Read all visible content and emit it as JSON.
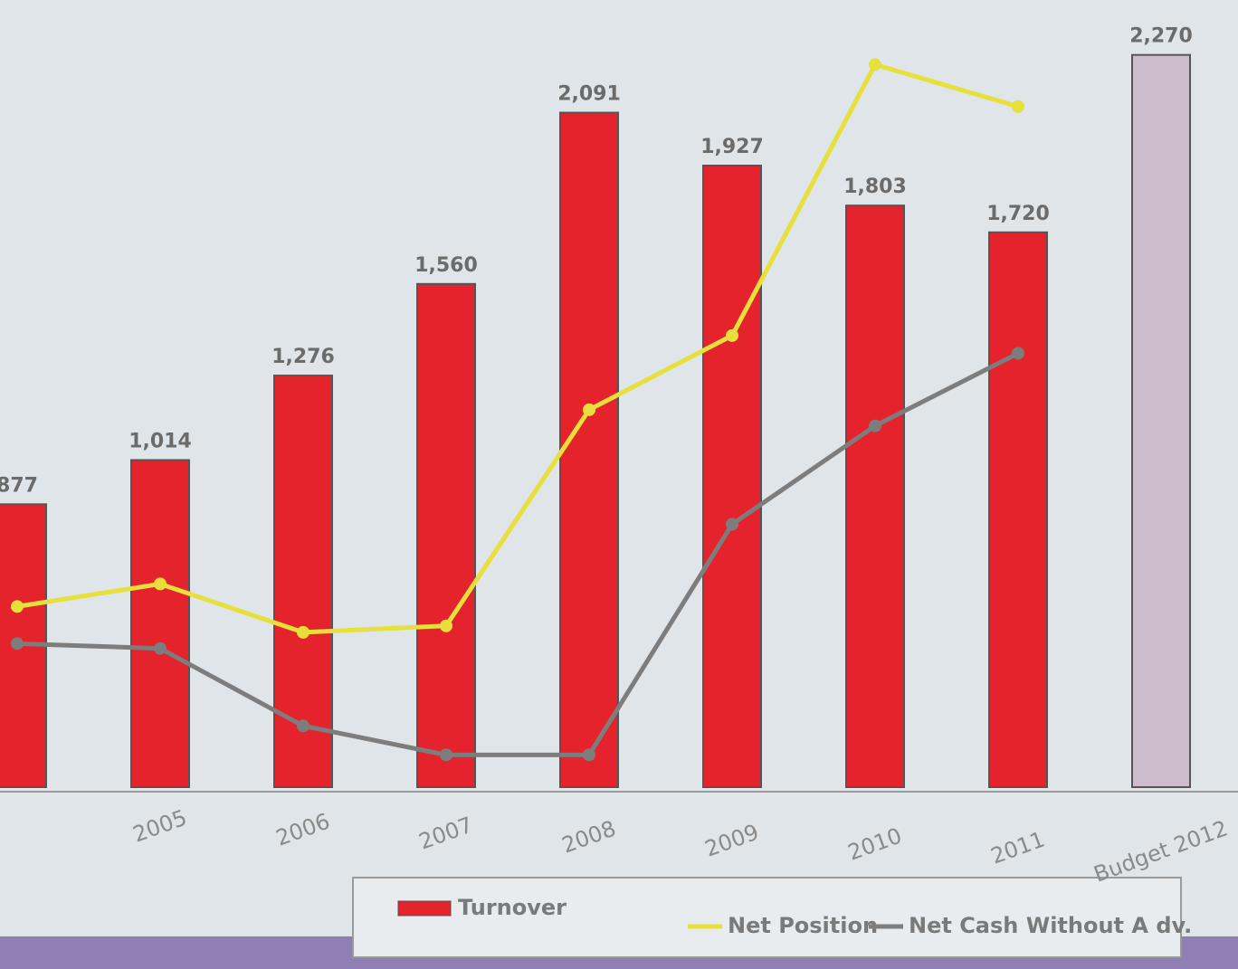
{
  "chart_data": {
    "type": "bar-line",
    "categories": [
      null,
      "2005",
      "2006",
      "2007",
      "2008",
      "2009",
      "2010",
      "2011",
      "Budget 2012"
    ],
    "series": [
      {
        "name": "Turnover",
        "kind": "bar",
        "color": "#e4232c",
        "colors": [
          "#e4232c",
          "#e4232c",
          "#e4232c",
          "#e4232c",
          "#e4232c",
          "#e4232c",
          "#e4232c",
          "#e4232c",
          "#cdbccb"
        ],
        "values": [
          877,
          1014,
          1276,
          1560,
          2091,
          1927,
          1803,
          1720,
          2270
        ],
        "value_labels": [
          "877",
          "1,014",
          "1,276",
          "1,560",
          "2,091",
          "1,927",
          "1,803",
          "1,720",
          "2,270"
        ]
      },
      {
        "name": "Net Position",
        "kind": "line",
        "color": "#e8e03a",
        "values": [
          560,
          630,
          480,
          500,
          1170,
          1400,
          2240,
          2110,
          null
        ]
      },
      {
        "name": "Net Cash Without A dv.",
        "kind": "line",
        "color": "#7d7d7d",
        "values": [
          445,
          430,
          190,
          100,
          100,
          815,
          1120,
          1345,
          null
        ]
      }
    ],
    "ylim": [
      0,
      2300
    ]
  }
}
